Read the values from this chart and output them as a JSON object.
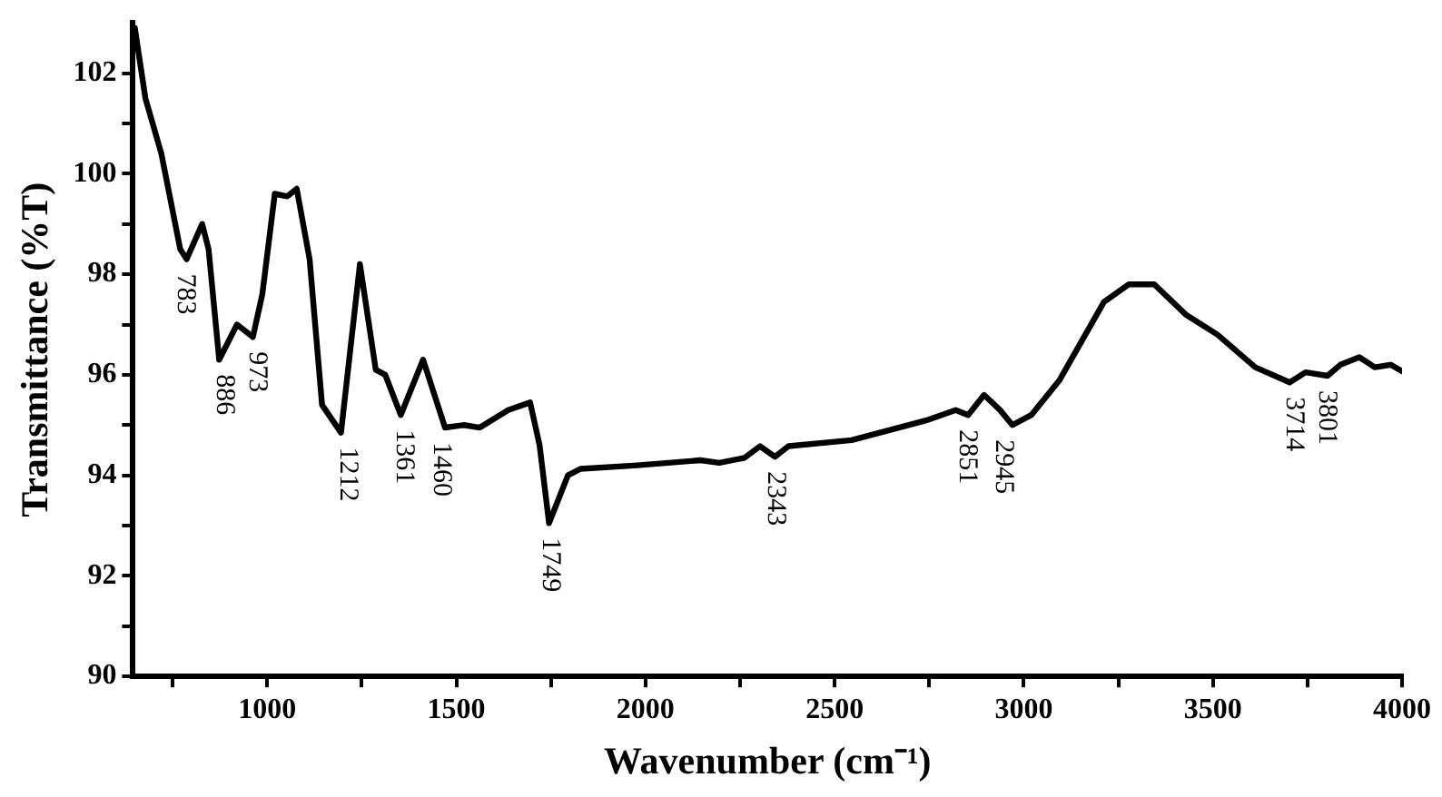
{
  "chart_data": {
    "type": "line",
    "xlabel": "Wavenumber (cm⁻¹)",
    "ylabel": "Transmittance (%T)",
    "xlim": [
      645,
      4000
    ],
    "ylim": [
      90,
      103
    ],
    "xticks": [
      {
        "value": 750,
        "label": null
      },
      1000,
      {
        "value": 1250,
        "label": null
      },
      1500,
      {
        "value": 1750,
        "label": null
      },
      2000,
      {
        "value": 2250,
        "label": null
      },
      2500,
      {
        "value": 2750,
        "label": null
      },
      3000,
      {
        "value": 3250,
        "label": null
      },
      3500,
      {
        "value": 3750,
        "label": null
      },
      4000
    ],
    "yticks": [
      90,
      {
        "value": 91,
        "label": null
      },
      92,
      {
        "value": 93,
        "label": null
      },
      94,
      {
        "value": 95,
        "label": null
      },
      96,
      {
        "value": 97,
        "label": null
      },
      98,
      {
        "value": 99,
        "label": null
      },
      100,
      {
        "value": 101,
        "label": null
      },
      102
    ],
    "grid": false,
    "legend": false,
    "marker": "none",
    "line_style": "solid",
    "series": [
      {
        "color": "#000000",
        "x": [
          650,
          678,
          720,
          770,
          787,
          828,
          845,
          873,
          920,
          962,
          987,
          1020,
          1053,
          1078,
          1112,
          1145,
          1195,
          1245,
          1287,
          1312,
          1353,
          1412,
          1470,
          1520,
          1562,
          1637,
          1695,
          1720,
          1745,
          1795,
          1828,
          1978,
          2145,
          2195,
          2262,
          2303,
          2342,
          2378,
          2545,
          2745,
          2820,
          2853,
          2895,
          2937,
          2970,
          3020,
          3095,
          3212,
          3278,
          3345,
          3428,
          3512,
          3612,
          3703,
          3745,
          3803,
          3837,
          3887,
          3928,
          3970,
          4000
        ],
        "values": [
          102.9,
          101.5,
          100.4,
          98.5,
          98.3,
          99.0,
          98.5,
          96.3,
          97.0,
          96.75,
          97.6,
          99.6,
          99.55,
          99.7,
          98.3,
          95.4,
          94.85,
          98.2,
          96.1,
          96.0,
          95.2,
          96.3,
          94.95,
          95.0,
          94.95,
          95.3,
          95.45,
          94.6,
          93.05,
          94.0,
          94.13,
          94.2,
          94.3,
          94.25,
          94.35,
          94.58,
          94.37,
          94.58,
          94.7,
          95.1,
          95.3,
          95.2,
          95.6,
          95.3,
          95.0,
          95.2,
          95.9,
          97.45,
          97.8,
          97.8,
          97.2,
          96.8,
          96.15,
          95.85,
          96.05,
          95.98,
          96.2,
          96.35,
          96.15,
          96.2,
          96.07
        ]
      }
    ],
    "annotations": [
      {
        "text": "783",
        "x": 783,
        "y": 98.3
      },
      {
        "text": "886",
        "x": 886,
        "y": 96.3
      },
      {
        "text": "973",
        "x": 973,
        "y": 96.75
      },
      {
        "text": "1212",
        "x": 1212,
        "y": 94.85
      },
      {
        "text": "1361",
        "x": 1361,
        "y": 95.2
      },
      {
        "text": "1460",
        "x": 1460,
        "y": 94.95
      },
      {
        "text": "1749",
        "x": 1749,
        "y": 93.05
      },
      {
        "text": "2343",
        "x": 2343,
        "y": 94.37
      },
      {
        "text": "2851",
        "x": 2851,
        "y": 95.2
      },
      {
        "text": "2945",
        "x": 2945,
        "y": 95.0
      },
      {
        "text": "3714",
        "x": 3714,
        "y": 95.85
      },
      {
        "text": "3801",
        "x": 3801,
        "y": 95.98
      }
    ]
  }
}
